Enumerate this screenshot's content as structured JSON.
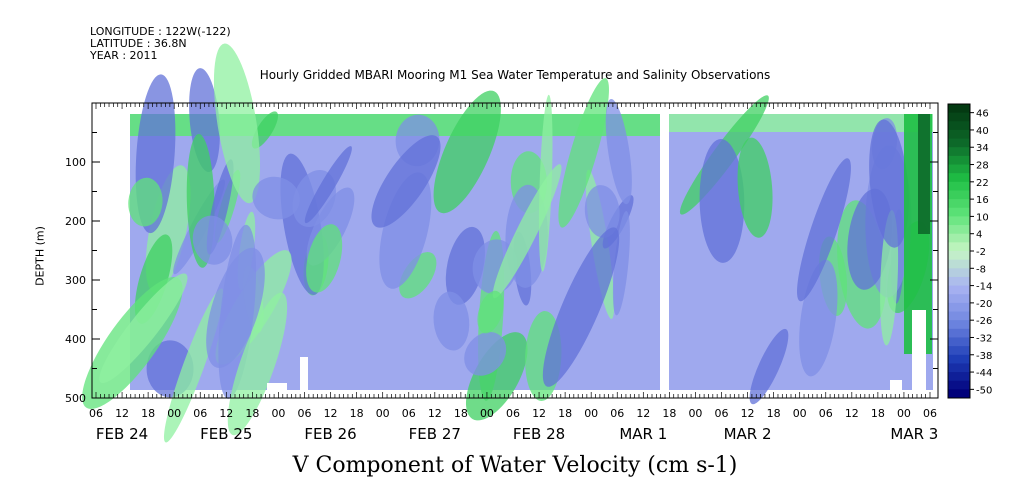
{
  "header": {
    "longitude": "LONGITUDE : 122W(-122)",
    "latitude": "LATITUDE : 36.8N",
    "year": "YEAR : 2011"
  },
  "chart_data": {
    "type": "heatmap",
    "title": "Hourly Gridded MBARI Mooring M1 Sea Water Temperature and Salinity Observations",
    "xlabel": "V Component of Water Velocity (cm s-1)",
    "ylabel": "DEPTH (m)",
    "ylim": [
      500,
      0
    ],
    "y_ticks": [
      100,
      200,
      300,
      400,
      500
    ],
    "x_hour_ticks": [
      "06",
      "12",
      "18",
      "00",
      "06",
      "12",
      "18",
      "00",
      "06",
      "12",
      "18",
      "00",
      "06",
      "12",
      "18",
      "00",
      "06",
      "12",
      "18",
      "00",
      "06",
      "12",
      "18",
      "00",
      "06",
      "12",
      "18",
      "00",
      "06",
      "12",
      "18",
      "00",
      "06"
    ],
    "x_day_labels": [
      "FEB 24",
      "FEB 25",
      "FEB 26",
      "FEB 27",
      "FEB 28",
      "MAR  1",
      "MAR  2",
      "MAR  3"
    ],
    "colorbar": {
      "ticks": [
        "46",
        "40",
        "34",
        "28",
        "22",
        "16",
        "10",
        "4",
        "-2",
        "-8",
        "-14",
        "-20",
        "-26",
        "-32",
        "-38",
        "-44",
        "-50"
      ],
      "range": [
        -50,
        50
      ],
      "colors_low_to_high": [
        "#00007a",
        "#1f3fb8",
        "#6f86e0",
        "#a9b3f2",
        "#c6f5c4",
        "#5fe37a",
        "#1fbf45",
        "#0d6a2a",
        "#043a12"
      ]
    }
  }
}
